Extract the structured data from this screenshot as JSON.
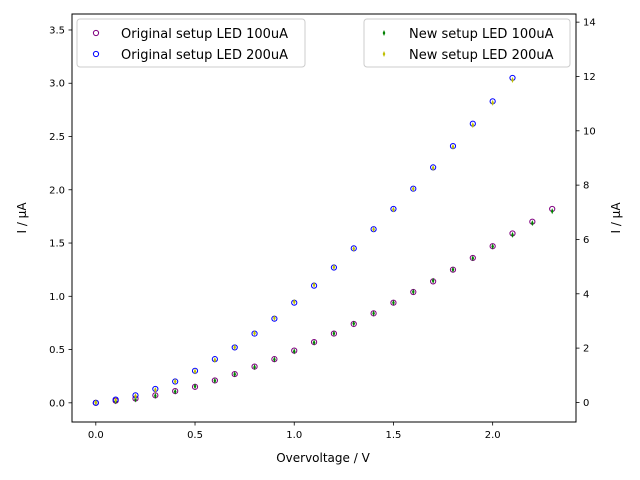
{
  "chart_data": {
    "type": "scatter",
    "xlabel": "Overvoltage / V",
    "ylabel_left": "I / μA",
    "ylabel_right": "I / μA",
    "xlim": [
      -0.12,
      2.42
    ],
    "ylim_left": [
      -0.18,
      3.65
    ],
    "ylim_right": [
      -0.72,
      14.3
    ],
    "x_ticks": [
      0.0,
      0.5,
      1.0,
      1.5,
      2.0
    ],
    "x_tick_labels": [
      "0.0",
      "0.5",
      "1.0",
      "1.5",
      "2.0"
    ],
    "y_left_ticks": [
      0.0,
      0.5,
      1.0,
      1.5,
      2.0,
      2.5,
      3.0,
      3.5
    ],
    "y_left_tick_labels": [
      "0.0",
      "0.5",
      "1.0",
      "1.5",
      "2.0",
      "2.5",
      "3.0",
      "3.5"
    ],
    "y_right_ticks": [
      0,
      2,
      4,
      6,
      8,
      10,
      12,
      14
    ],
    "y_right_tick_labels": [
      "0",
      "2",
      "4",
      "6",
      "8",
      "10",
      "12",
      "14"
    ],
    "grid": false,
    "legend_left": {
      "placement": "upper-left",
      "entries": [
        {
          "label": "Original setup LED 100uA",
          "color": "#800080",
          "marker": "circle"
        },
        {
          "label": "Original setup LED 200uA",
          "color": "#0000ff",
          "marker": "circle"
        }
      ]
    },
    "legend_right": {
      "placement": "upper-right",
      "entries": [
        {
          "label": "New setup LED 100uA",
          "color": "#008000",
          "marker": "thin-diamond"
        },
        {
          "label": "New setup LED 200uA",
          "color": "#bfbf00",
          "marker": "thin-diamond"
        }
      ]
    },
    "series": [
      {
        "name": "Original setup LED 100uA",
        "axis": "left",
        "color": "#800080",
        "marker": "circle",
        "x": [
          0.0,
          0.1,
          0.2,
          0.3,
          0.4,
          0.5,
          0.6,
          0.7,
          0.8,
          0.9,
          1.0,
          1.1,
          1.2,
          1.3,
          1.4,
          1.5,
          1.6,
          1.7,
          1.8,
          1.9,
          2.0,
          2.1,
          2.2,
          2.3
        ],
        "y": [
          0.0,
          0.02,
          0.04,
          0.07,
          0.11,
          0.15,
          0.21,
          0.27,
          0.34,
          0.41,
          0.49,
          0.57,
          0.65,
          0.74,
          0.84,
          0.94,
          1.04,
          1.14,
          1.25,
          1.36,
          1.47,
          1.59,
          1.7,
          1.82
        ]
      },
      {
        "name": "Original setup LED 200uA",
        "axis": "left",
        "color": "#0000ff",
        "marker": "circle",
        "x": [
          0.0,
          0.1,
          0.2,
          0.3,
          0.4,
          0.5,
          0.6,
          0.7,
          0.8,
          0.9,
          1.0,
          1.1,
          1.2,
          1.3,
          1.4,
          1.5,
          1.6,
          1.7,
          1.8,
          1.9,
          2.0,
          2.1
        ],
        "y": [
          0.0,
          0.03,
          0.07,
          0.13,
          0.2,
          0.3,
          0.41,
          0.52,
          0.65,
          0.79,
          0.94,
          1.1,
          1.27,
          1.45,
          1.63,
          1.82,
          2.01,
          2.21,
          2.41,
          2.62,
          2.83,
          3.05
        ]
      },
      {
        "name": "New setup LED 100uA",
        "axis": "right",
        "color": "#008000",
        "marker": "thin-diamond",
        "x": [
          0.0,
          0.1,
          0.2,
          0.3,
          0.4,
          0.5,
          0.6,
          0.7,
          0.8,
          0.9,
          1.0,
          1.1,
          1.2,
          1.3,
          1.4,
          1.5,
          1.6,
          1.7,
          1.8,
          1.9,
          2.0,
          2.1,
          2.2,
          2.3
        ],
        "y": [
          0.0,
          0.04,
          0.11,
          0.24,
          0.4,
          0.59,
          0.8,
          1.04,
          1.3,
          1.58,
          1.88,
          2.2,
          2.54,
          2.9,
          3.28,
          3.67,
          4.07,
          4.48,
          4.89,
          5.31,
          5.74,
          6.17,
          6.6,
          7.04
        ]
      },
      {
        "name": "New setup LED 200uA",
        "axis": "right",
        "color": "#bfbf00",
        "marker": "thin-diamond",
        "x": [
          0.0,
          0.1,
          0.2,
          0.3,
          0.4,
          0.5,
          0.6,
          0.7,
          0.8,
          0.9,
          1.0,
          1.1,
          1.2,
          1.3,
          1.4,
          1.5,
          1.6,
          1.7,
          1.8,
          1.9,
          2.0,
          2.1
        ],
        "y": [
          0.0,
          0.08,
          0.23,
          0.46,
          0.77,
          1.14,
          1.56,
          2.03,
          2.55,
          3.11,
          3.7,
          4.33,
          4.98,
          5.66,
          6.37,
          7.1,
          7.86,
          8.63,
          9.41,
          10.21,
          11.03,
          11.87
        ]
      }
    ]
  }
}
